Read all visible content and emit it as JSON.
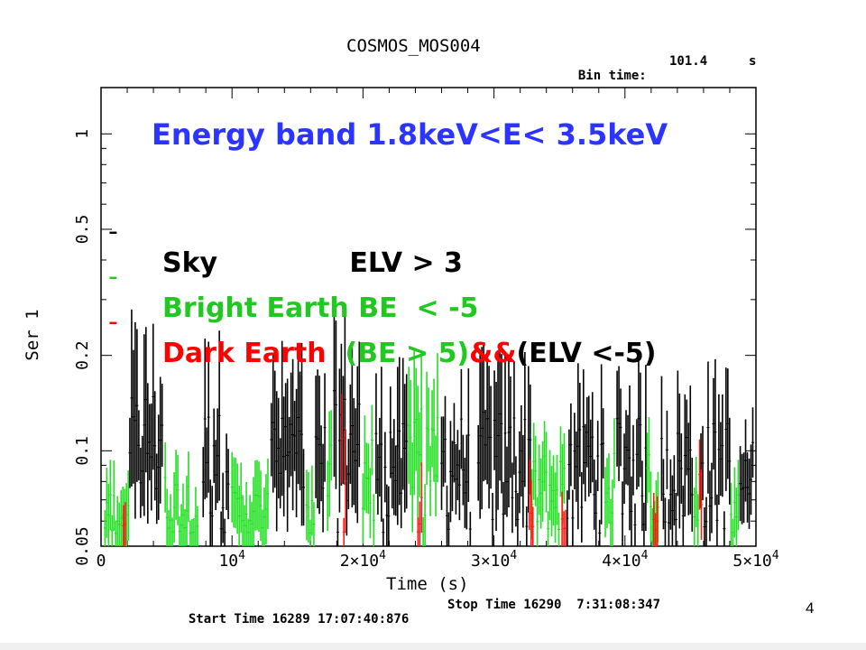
{
  "chart_data": {
    "type": "line",
    "title": "COSMOS_MOS004",
    "bin_time": {
      "label": "Bin time:",
      "value": "101.4",
      "unit": "s"
    },
    "xlabel": "Time (s)",
    "ylabel": "Ser 1",
    "xlim": [
      0,
      50000
    ],
    "ylim": [
      0.05,
      1.4
    ],
    "yscale": "log",
    "x_ticks": [
      {
        "value": 0,
        "label": "0"
      },
      {
        "value": 10000,
        "label": "10^4"
      },
      {
        "value": 20000,
        "label": "2×10^4"
      },
      {
        "value": 30000,
        "label": "3×10^4"
      },
      {
        "value": 40000,
        "label": "4×10^4"
      },
      {
        "value": 50000,
        "label": "5×10^4"
      }
    ],
    "y_ticks": [
      {
        "value": 0.05,
        "label": "0.05"
      },
      {
        "value": 0.1,
        "label": "0.1"
      },
      {
        "value": 0.2,
        "label": "0.2"
      },
      {
        "value": 0.5,
        "label": "0.5"
      },
      {
        "value": 1,
        "label": "1"
      }
    ],
    "series": [
      {
        "name": "Sky",
        "color": "#000000",
        "segments": [
          [
            2200,
            4800
          ],
          [
            7800,
            9800
          ],
          [
            13000,
            15600
          ],
          [
            16400,
            17200
          ],
          [
            17800,
            19800
          ],
          [
            21000,
            23400
          ],
          [
            26000,
            28200
          ],
          [
            28800,
            32800
          ],
          [
            35600,
            38400
          ],
          [
            39400,
            41600
          ],
          [
            42800,
            45200
          ],
          [
            45800,
            48000
          ],
          [
            48800,
            49800
          ]
        ],
        "peaks": [
          0.27,
          0.24,
          0.22,
          0.19,
          0.28,
          0.19,
          0.18,
          0.21,
          0.18,
          0.2,
          0.18,
          0.19,
          0.13
        ]
      },
      {
        "name": "Bright Earth",
        "color": "#22e022",
        "segments": [
          [
            300,
            2100
          ],
          [
            4900,
            7500
          ],
          [
            10000,
            12800
          ],
          [
            15700,
            16300
          ],
          [
            17300,
            17700
          ],
          [
            20000,
            20900
          ],
          [
            23500,
            25800
          ],
          [
            32900,
            35400
          ],
          [
            38500,
            39300
          ],
          [
            41700,
            42600
          ],
          [
            45300,
            45700
          ],
          [
            48100,
            48700
          ]
        ],
        "peaks": [
          0.09,
          0.1,
          0.09,
          0.08,
          0.26,
          0.16,
          0.2,
          0.12,
          0.14,
          0.12,
          0.11,
          0.09
        ]
      },
      {
        "name": "Dark Earth",
        "color": "#ff1a1a",
        "segments": [
          [
            1700,
            1900
          ],
          [
            18400,
            18700
          ],
          [
            24200,
            24500
          ],
          [
            32700,
            33000
          ],
          [
            35200,
            35500
          ],
          [
            42200,
            42500
          ],
          [
            45700,
            45900
          ]
        ],
        "peaks": [
          0.06,
          0.17,
          0.09,
          0.09,
          0.07,
          0.07,
          0.15
        ]
      }
    ]
  },
  "annotation": {
    "title": "Energy band 1.8keV<E< 3.5keV",
    "title_color": "#2b35ff",
    "legend": [
      {
        "dash": "-",
        "parts": [
          {
            "text": "Sky              ELV > 3",
            "color": "#000000"
          }
        ]
      },
      {
        "dash": "-",
        "parts": [
          {
            "text": "Bright Earth BE  < -5",
            "color": "#22c822"
          }
        ]
      },
      {
        "dash": "-",
        "parts": [
          {
            "text": "Dark Earth",
            "color": "#ff0000"
          },
          {
            "text": "  (BE > 5)",
            "color": "#22c822"
          },
          {
            "text": "&&",
            "color": "#ff0000"
          },
          {
            "text": "(ELV <-5)",
            "color": "#000000"
          }
        ]
      }
    ]
  },
  "footer": {
    "start_time": "Start Time 16289 17:07:40:876",
    "stop_time": "Stop Time 16290  7:31:08:347",
    "page_number": "4"
  }
}
